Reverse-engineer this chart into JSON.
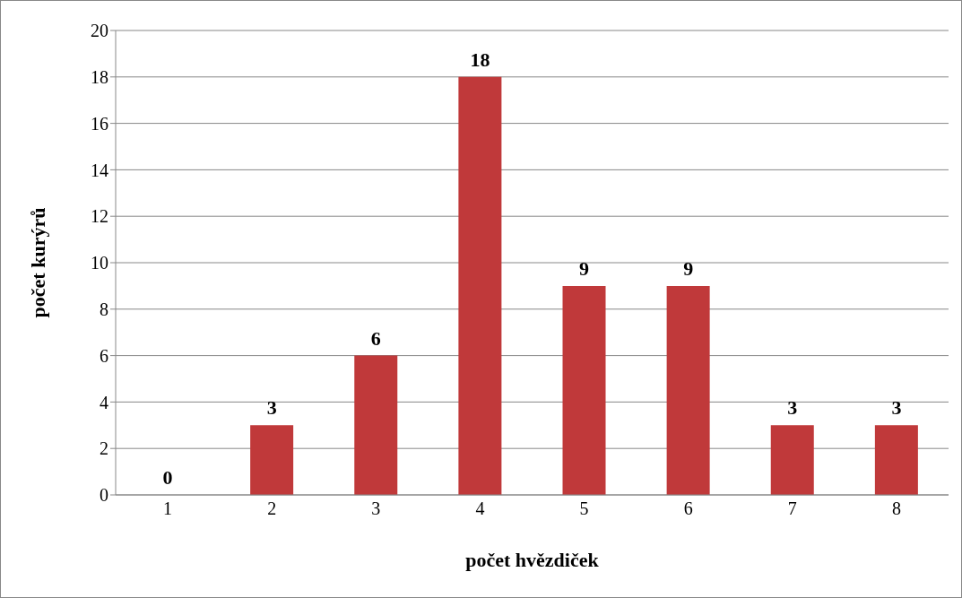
{
  "chart_data": {
    "type": "bar",
    "xlabel": "počet hvězdiček",
    "ylabel": "počet kurýrů",
    "categories": [
      "1",
      "2",
      "3",
      "4",
      "5",
      "6",
      "7",
      "8"
    ],
    "values": [
      0,
      3,
      6,
      18,
      9,
      9,
      3,
      3
    ],
    "color": "#c0393a",
    "ylim": [
      0,
      20
    ],
    "yticks": [
      0,
      2,
      4,
      6,
      8,
      10,
      12,
      14,
      16,
      18,
      20
    ],
    "grid": "y",
    "data_labels": true
  }
}
